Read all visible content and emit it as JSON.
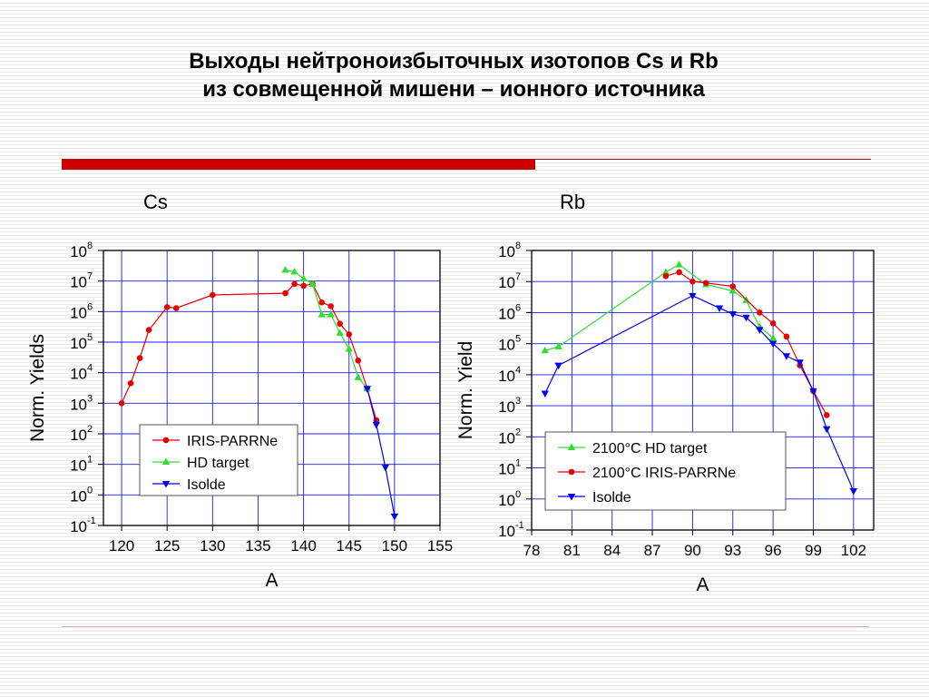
{
  "slide": {
    "title_line1": "Выходы нейтроноизбыточных изотопов Cs и Rb",
    "title_line2": "из совмещенной мишени – ионного источника"
  },
  "colors": {
    "accent": "#cc0000",
    "grid": "#1a1aff",
    "red": "#e60000",
    "green": "#33dd33",
    "blue": "#0000ee"
  },
  "chart_data": [
    {
      "type": "scatter",
      "title": "Cs",
      "xlabel": "A",
      "ylabel": "Norm. Yields",
      "yscale": "log",
      "xlim": [
        118,
        155
      ],
      "ylim": [
        0.1,
        100000000
      ],
      "xticks": [
        "120",
        "125",
        "130",
        "135",
        "140",
        "145",
        "150",
        "155"
      ],
      "yticks": [
        [
          "10",
          "-1"
        ],
        [
          "10",
          "0"
        ],
        [
          "10",
          "1"
        ],
        [
          "10",
          "2"
        ],
        [
          "10",
          "3"
        ],
        [
          "10",
          "4"
        ],
        [
          "10",
          "5"
        ],
        [
          "10",
          "6"
        ],
        [
          "10",
          "7"
        ],
        [
          "10",
          "8"
        ]
      ],
      "grid": true,
      "legend_position": "bottom-left",
      "series": [
        {
          "name": "IRIS-PARRNe",
          "color": "#e60000",
          "marker": "circle",
          "x": [
            120,
            121,
            122,
            123,
            125,
            126,
            130,
            138,
            139,
            140,
            141,
            142,
            143,
            144,
            145,
            146,
            147,
            148
          ],
          "y": [
            1000,
            4500,
            30000,
            250000,
            1400000,
            1300000,
            3500000,
            4000000,
            8000000,
            7000000,
            8000000,
            2000000,
            1500000,
            400000,
            180000,
            25000,
            3000,
            280
          ]
        },
        {
          "name": "HD target",
          "color": "#33dd33",
          "marker": "triangle-up",
          "x": [
            138,
            139,
            140,
            141,
            142,
            143,
            144,
            145,
            146,
            147
          ],
          "y": [
            23000000,
            20000000,
            12000000,
            8000000,
            800000,
            800000,
            200000,
            60000,
            7000,
            3000
          ]
        },
        {
          "name": "Isolde",
          "color": "#0000ee",
          "marker": "triangle-down",
          "x": [
            147,
            148,
            149,
            150
          ],
          "y": [
            3000,
            200,
            8,
            0.2
          ]
        }
      ]
    },
    {
      "type": "scatter",
      "title": "Rb",
      "xlabel": "A",
      "ylabel": "Norm. Yield",
      "yscale": "log",
      "xlim": [
        78,
        103.5
      ],
      "ylim": [
        0.1,
        100000000
      ],
      "xticks": [
        "78",
        "81",
        "84",
        "87",
        "90",
        "93",
        "96",
        "99",
        "102"
      ],
      "yticks": [
        [
          "10",
          "-1"
        ],
        [
          "10",
          "0"
        ],
        [
          "10",
          "1"
        ],
        [
          "10",
          "2"
        ],
        [
          "10",
          "3"
        ],
        [
          "10",
          "4"
        ],
        [
          "10",
          "5"
        ],
        [
          "10",
          "6"
        ],
        [
          "10",
          "7"
        ],
        [
          "10",
          "8"
        ]
      ],
      "grid": true,
      "legend_position": "bottom-right",
      "series": [
        {
          "name": "2100°C HD target",
          "color": "#33dd33",
          "marker": "triangle-up",
          "x": [
            79,
            80,
            88,
            89,
            91,
            93,
            94,
            95,
            96
          ],
          "y": [
            60000,
            80000,
            20000000,
            35000000,
            8000000,
            5000000,
            2500000,
            350000,
            150000
          ]
        },
        {
          "name": "2100°C IRIS-PARRNe",
          "color": "#e60000",
          "marker": "circle",
          "x": [
            88,
            89,
            90,
            91,
            93,
            95,
            96,
            97,
            98,
            99,
            100
          ],
          "y": [
            15000000,
            20000000,
            10000000,
            9000000,
            7000000,
            1000000,
            450000,
            170000,
            20000,
            3000,
            500
          ]
        },
        {
          "name": "Isolde",
          "color": "#0000ee",
          "marker": "triangle-down",
          "x": [
            79,
            80,
            90,
            92,
            93,
            94,
            95,
            96,
            97,
            98,
            99,
            100,
            102
          ],
          "y": [
            2500,
            20000,
            3500000,
            1400000,
            900000,
            700000,
            280000,
            100000,
            40000,
            25000,
            3000,
            180,
            1.8
          ]
        }
      ]
    }
  ]
}
